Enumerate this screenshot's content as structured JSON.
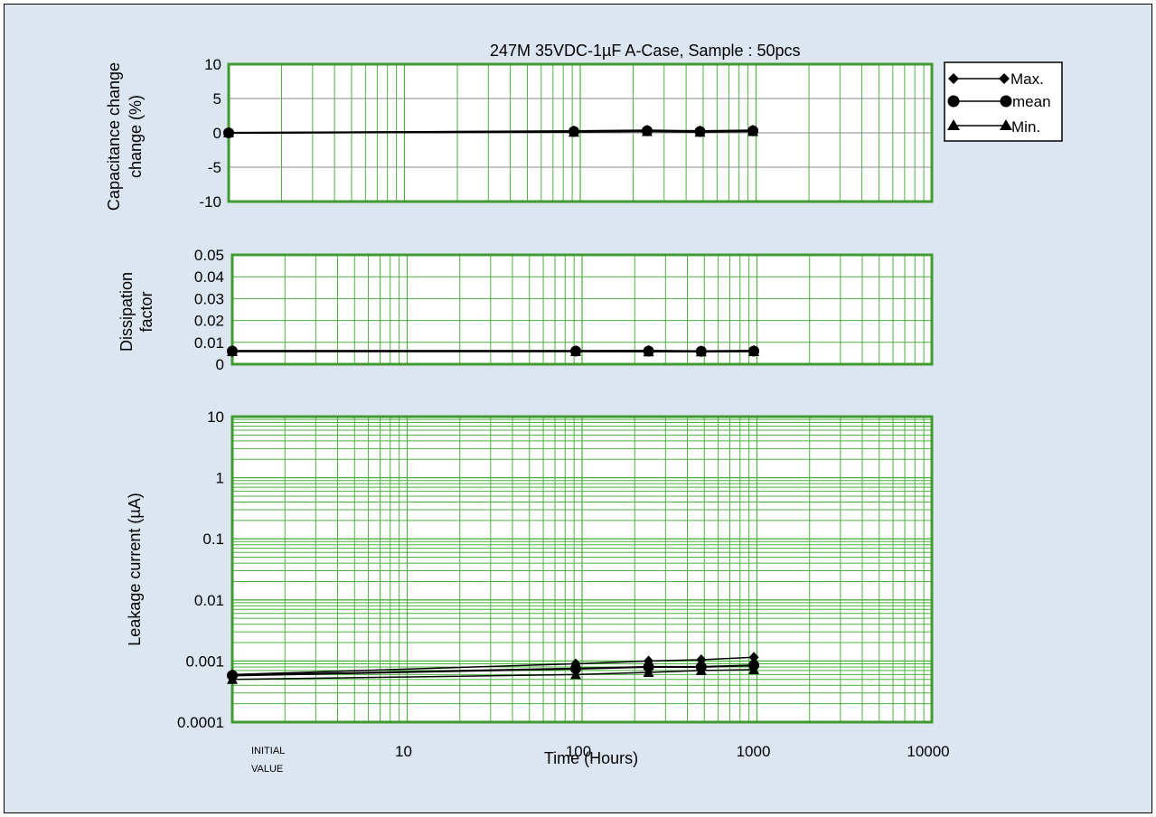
{
  "colors": {
    "background": "#dce6f1",
    "plot_bg": "#ffffff",
    "frame_border": "#3f9a2f",
    "gridline": "#4cb13f",
    "series": "#000000"
  },
  "chart_data": [
    {
      "type": "line",
      "title": "247M 35VDC-1µF A-Case, Sample : 50pcs",
      "ylabel": "Capacitance change",
      "ylabel_unit": "(%)",
      "ylim": [
        -10,
        10
      ],
      "yticks": [
        "10",
        "5",
        "0",
        "-5",
        "-10"
      ],
      "xscale": "log",
      "x": [
        1,
        92,
        240,
        480,
        960
      ],
      "series": [
        {
          "name": "Max.",
          "values": [
            0.0,
            0.3,
            0.4,
            0.3,
            0.4
          ]
        },
        {
          "name": "mean",
          "values": [
            0.0,
            0.2,
            0.3,
            0.2,
            0.3
          ]
        },
        {
          "name": "Min.",
          "values": [
            0.0,
            0.1,
            0.2,
            0.1,
            0.2
          ]
        }
      ],
      "legend": {
        "placement": "top-right",
        "entries": [
          "Max.",
          "mean",
          "Min."
        ]
      }
    },
    {
      "type": "line",
      "ylabel": "Dissipation",
      "ylabel2": "factor",
      "ylim": [
        0,
        0.05
      ],
      "yticks": [
        "0.05",
        "0.04",
        "0.03",
        "0.02",
        "0.01",
        "0"
      ],
      "xscale": "log",
      "x": [
        1,
        92,
        240,
        480,
        960
      ],
      "series": [
        {
          "name": "Max.",
          "values": [
            0.0062,
            0.0062,
            0.0063,
            0.0061,
            0.0063
          ]
        },
        {
          "name": "mean",
          "values": [
            0.006,
            0.006,
            0.006,
            0.0059,
            0.006
          ]
        },
        {
          "name": "Min.",
          "values": [
            0.0058,
            0.0058,
            0.0057,
            0.0057,
            0.0058
          ]
        }
      ]
    },
    {
      "type": "line",
      "ylabel": "Leakage current (µA)",
      "yscale": "log",
      "ylim": [
        0.0001,
        10
      ],
      "yticks": [
        "10",
        "1",
        "0.1",
        "0.01",
        "0.001",
        "0.0001"
      ],
      "xlabel": "Time (Hours)",
      "xscale": "log",
      "xticks": [
        "INITIAL",
        "10",
        "100",
        "1000",
        "10000"
      ],
      "xtick_initial_line2": "VALUE",
      "x": [
        1,
        92,
        240,
        480,
        960
      ],
      "series": [
        {
          "name": "Max.",
          "values": [
            0.0006,
            0.0009,
            0.001,
            0.00105,
            0.00115
          ]
        },
        {
          "name": "mean",
          "values": [
            0.00058,
            0.00075,
            0.0008,
            0.0008,
            0.00085
          ]
        },
        {
          "name": "Min.",
          "values": [
            0.0005,
            0.0006,
            0.00065,
            0.0007,
            0.00072
          ]
        }
      ]
    }
  ]
}
